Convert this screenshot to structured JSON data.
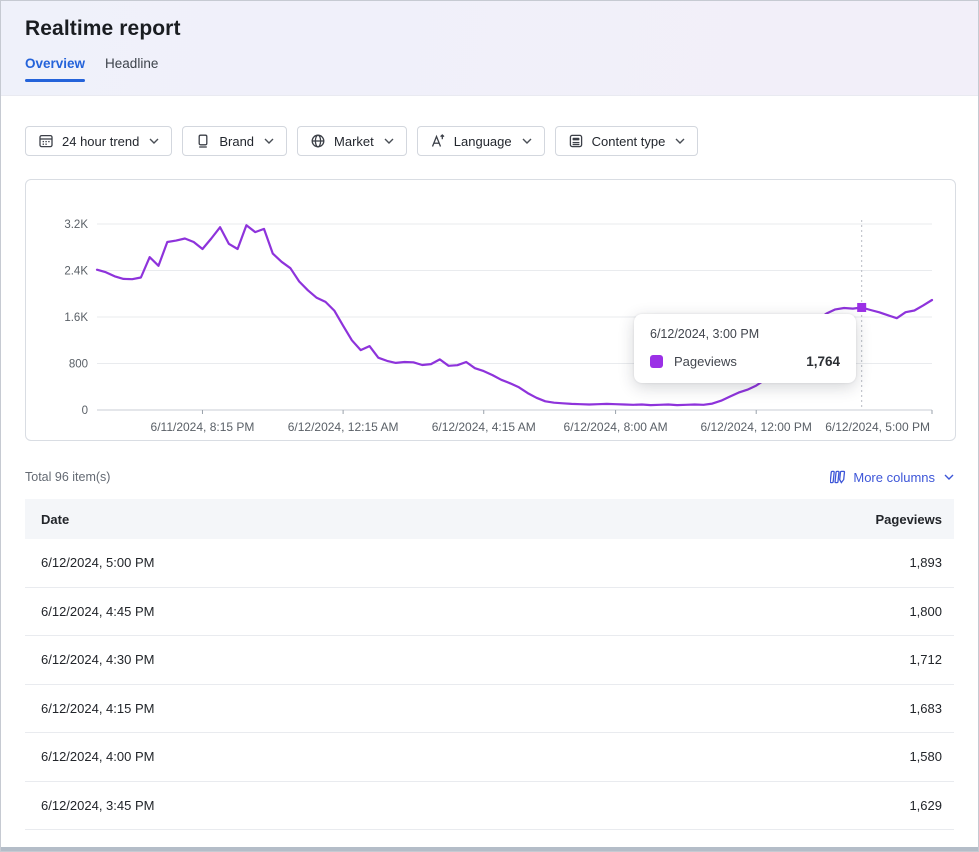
{
  "header": {
    "title": "Realtime report",
    "tabs": [
      {
        "label": "Overview",
        "active": true
      },
      {
        "label": "Headline",
        "active": false
      }
    ]
  },
  "filters": [
    {
      "icon": "calendar-trend-icon",
      "label": "24 hour trend"
    },
    {
      "icon": "brand-device-icon",
      "label": "Brand"
    },
    {
      "icon": "globe-icon",
      "label": "Market"
    },
    {
      "icon": "translate-icon",
      "label": "Language"
    },
    {
      "icon": "content-type-icon",
      "label": "Content type"
    }
  ],
  "chart_data": {
    "type": "line",
    "title": "",
    "xlabel": "",
    "ylabel": "",
    "ylim": [
      0,
      3200
    ],
    "grid": true,
    "y_ticks": [
      {
        "value": 0,
        "label": "0"
      },
      {
        "value": 800,
        "label": "800"
      },
      {
        "value": 1600,
        "label": "1.6K"
      },
      {
        "value": 2400,
        "label": "2.4K"
      },
      {
        "value": 3200,
        "label": "3.2K"
      }
    ],
    "x_ticks": [
      {
        "index": 12,
        "label": "6/11/2024, 8:15 PM"
      },
      {
        "index": 28,
        "label": "6/12/2024, 12:15 AM"
      },
      {
        "index": 44,
        "label": "6/12/2024, 4:15 AM"
      },
      {
        "index": 59,
        "label": "6/12/2024, 8:00 AM"
      },
      {
        "index": 75,
        "label": "6/12/2024, 12:00 PM"
      },
      {
        "index": 95,
        "label": "6/12/2024, 5:00 PM"
      }
    ],
    "series": [
      {
        "name": "Pageviews",
        "color": "#8e33db",
        "values": [
          2413,
          2370,
          2300,
          2255,
          2250,
          2280,
          2630,
          2480,
          2890,
          2915,
          2950,
          2890,
          2770,
          2950,
          3145,
          2860,
          2770,
          3180,
          3060,
          3115,
          2690,
          2550,
          2440,
          2210,
          2060,
          1930,
          1860,
          1710,
          1450,
          1200,
          1030,
          1100,
          900,
          845,
          810,
          825,
          820,
          775,
          790,
          870,
          760,
          770,
          825,
          720,
          670,
          600,
          520,
          460,
          390,
          290,
          210,
          150,
          125,
          115,
          105,
          100,
          95,
          100,
          105,
          100,
          95,
          90,
          95,
          85,
          90,
          95,
          85,
          90,
          95,
          90,
          110,
          160,
          230,
          300,
          350,
          420,
          520,
          650,
          800,
          980,
          1180,
          1380,
          1550,
          1660,
          1730,
          1755,
          1745,
          1764,
          1720,
          1680,
          1629,
          1580,
          1683,
          1712,
          1800,
          1893
        ]
      }
    ],
    "hover": {
      "index": 87,
      "date": "6/12/2024, 3:00 PM",
      "series": "Pageviews",
      "value": 1764,
      "value_label": "1,764"
    }
  },
  "table": {
    "total_label": "Total 96 item(s)",
    "more_columns_label": "More columns",
    "columns": [
      "Date",
      "Pageviews"
    ],
    "rows": [
      {
        "date": "6/12/2024, 5:00 PM",
        "pageviews": "1,893"
      },
      {
        "date": "6/12/2024, 4:45 PM",
        "pageviews": "1,800"
      },
      {
        "date": "6/12/2024, 4:30 PM",
        "pageviews": "1,712"
      },
      {
        "date": "6/12/2024, 4:15 PM",
        "pageviews": "1,683"
      },
      {
        "date": "6/12/2024, 4:00 PM",
        "pageviews": "1,580"
      },
      {
        "date": "6/12/2024, 3:45 PM",
        "pageviews": "1,629"
      }
    ]
  },
  "colors": {
    "tab_active_blue": "#2463da",
    "link_blue": "#3d56d8",
    "line_purple": "#8e33db",
    "marker_purple": "#9b30e6",
    "table_header_bg": "#f4f6f9"
  }
}
